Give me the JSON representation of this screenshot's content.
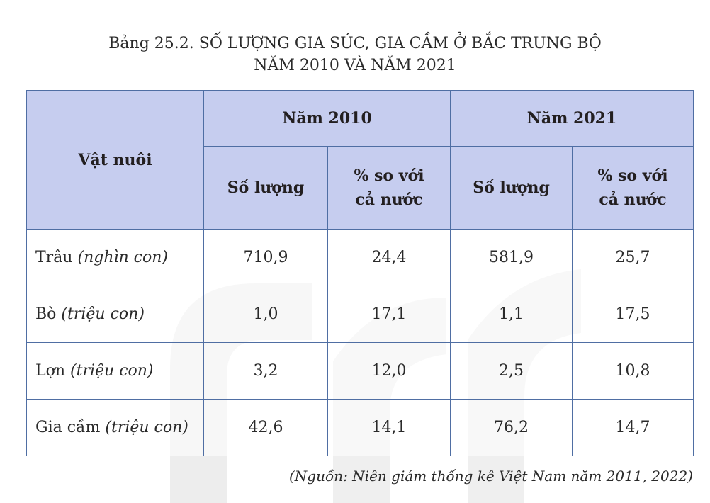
{
  "title": {
    "line1": "Bảng 25.2. SỐ LƯỢNG GIA SÚC, GIA CẦM Ở BẮC TRUNG BỘ",
    "line2": "NĂM 2010 VÀ NĂM 2021"
  },
  "table": {
    "header": {
      "animal": "Vật nuôi",
      "year1": "Năm 2010",
      "year2": "Năm 2021",
      "qty": "Số lượng",
      "pct_line1": "% so với",
      "pct_line2": "cả nước"
    },
    "rows": [
      {
        "name": "Trâu",
        "unit": "(nghìn con)",
        "qty_2010": "710,9",
        "pct_2010": "24,4",
        "qty_2021": "581,9",
        "pct_2021": "25,7"
      },
      {
        "name": "Bò",
        "unit": "(triệu con)",
        "qty_2010": "1,0",
        "pct_2010": "17,1",
        "qty_2021": "1,1",
        "pct_2021": "17,5"
      },
      {
        "name": "Lợn",
        "unit": "(triệu con)",
        "qty_2010": "3,2",
        "pct_2010": "12,0",
        "qty_2021": "2,5",
        "pct_2021": "10,8"
      },
      {
        "name": "Gia cầm",
        "unit": "(triệu con)",
        "qty_2010": "42,6",
        "pct_2010": "14,1",
        "qty_2021": "76,2",
        "pct_2021": "14,7"
      }
    ]
  },
  "source": "(Nguồn: Niên giám thống kê Việt Nam năm 2011, 2022)",
  "colors": {
    "header_bg": "#c6cdef",
    "border": "#4f6ea3",
    "watermark": "#ececec"
  }
}
